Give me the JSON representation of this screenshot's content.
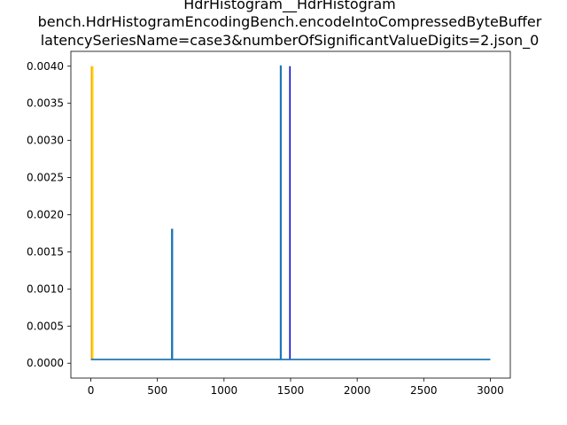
{
  "chart_data": {
    "type": "line",
    "title_lines": [
      "HdrHistogram__HdrHistogram",
      "bench.HdrHistogramEncodingBench.encodeIntoCompressedByteBuffer",
      "latencySeriesName=case3&numberOfSignificantValueDigits=2.json_0"
    ],
    "xlabel": "",
    "ylabel": "",
    "xlim": [
      -150,
      3150
    ],
    "ylim": [
      -0.0002,
      0.0042
    ],
    "xticks": [
      0,
      500,
      1000,
      1500,
      2000,
      2500,
      3000
    ],
    "xtick_labels": [
      "0",
      "500",
      "1000",
      "1500",
      "2000",
      "2500",
      "3000"
    ],
    "yticks": [
      0.0,
      0.0005,
      0.001,
      0.0015,
      0.002,
      0.0025,
      0.003,
      0.0035,
      0.004
    ],
    "ytick_labels": [
      "0.0000",
      "0.0005",
      "0.0010",
      "0.0015",
      "0.0020",
      "0.0025",
      "0.0030",
      "0.0035",
      "0.0040"
    ],
    "grid": false,
    "series": [
      {
        "color": "#1f77b4",
        "x": [
          0,
          608,
          608,
          612,
          612,
          1425,
          1425,
          1428,
          1428,
          3000
        ],
        "y": [
          5e-05,
          5e-05,
          0.0018,
          0.0018,
          5e-05,
          5e-05,
          0.004,
          0.004,
          5e-05,
          5e-05
        ]
      }
    ],
    "vlines": [
      {
        "x": 5,
        "ymin": 5e-05,
        "ymax": 0.004,
        "color": "#ffa500"
      },
      {
        "x": 15,
        "ymin": 5e-05,
        "ymax": 0.004,
        "color": "#ffd700"
      },
      {
        "x": 1495,
        "ymin": 5e-05,
        "ymax": 0.004,
        "color": "#0000cd"
      }
    ]
  }
}
